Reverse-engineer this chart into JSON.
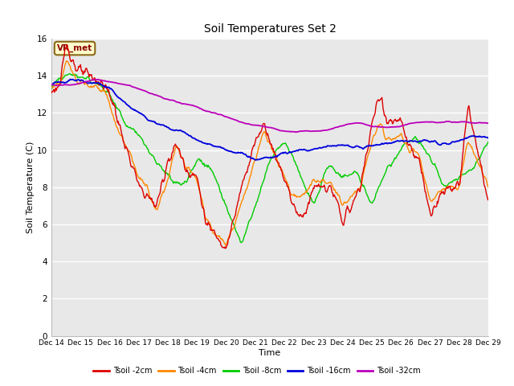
{
  "title": "Soil Temperatures Set 2",
  "xlabel": "Time",
  "ylabel": "Soil Temperature (C)",
  "annotation_label": "VR_met",
  "ylim": [
    0,
    16
  ],
  "yticks": [
    0,
    2,
    4,
    6,
    8,
    10,
    12,
    14,
    16
  ],
  "xtick_labels": [
    "Dec 14",
    "Dec 15",
    "Dec 16",
    "Dec 17",
    "Dec 18",
    "Dec 19",
    "Dec 20",
    "Dec 21",
    "Dec 22",
    "Dec 23",
    "Dec 24",
    "Dec 25",
    "Dec 26",
    "Dec 27",
    "Dec 28",
    "Dec 29"
  ],
  "series_colors": [
    "#dd0000",
    "#ff8800",
    "#00cc00",
    "#0000dd",
    "#bb00bb"
  ],
  "series_labels": [
    "Tsoil -2cm",
    "Tsoil -4cm",
    "Tsoil -8cm",
    "Tsoil -16cm",
    "Tsoil -32cm"
  ],
  "fig_bg_color": "#ffffff",
  "plot_bg_color": "#e8e8e8",
  "grid_color": "#ffffff",
  "n_points": 720
}
